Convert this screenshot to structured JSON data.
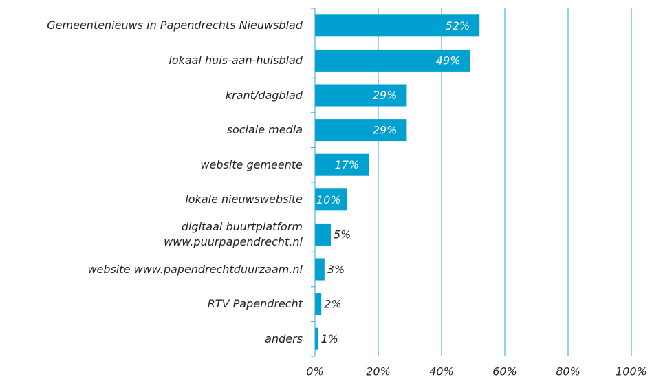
{
  "chart_data": {
    "type": "bar",
    "orientation": "horizontal",
    "categories": [
      "Gemeentenieuws in Papendrechts Nieuwsblad",
      "lokaal huis-aan-huisblad",
      "krant/dagblad",
      "sociale media",
      "website gemeente",
      "lokale nieuwswebsite",
      "digitaal buurtplatform\nwww.puurpapendrecht.nl",
      "website www.papendrechtduurzaam.nl",
      "RTV Papendrecht",
      "anders"
    ],
    "values": [
      52,
      49,
      29,
      29,
      17,
      10,
      5,
      3,
      2,
      1
    ],
    "value_labels": [
      "52%",
      "49%",
      "29%",
      "29%",
      "17%",
      "10%",
      "5%",
      "3%",
      "2%",
      "1%"
    ],
    "color": "#00a0d1",
    "xlim": [
      0,
      100
    ],
    "xticks": [
      {
        "value": 0,
        "label": "0%"
      },
      {
        "value": 20,
        "label": "20%"
      },
      {
        "value": 40,
        "label": "40%"
      },
      {
        "value": 60,
        "label": "60%"
      },
      {
        "value": 80,
        "label": "80%"
      },
      {
        "value": 100,
        "label": "100%"
      }
    ],
    "grid": true
  }
}
